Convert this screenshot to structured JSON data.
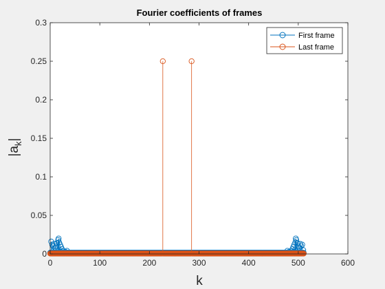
{
  "chart_data": {
    "type": "stem",
    "title": "Fourier coefficients of frames",
    "xlabel": "k",
    "ylabel_base": "|a",
    "ylabel_sub": "k",
    "ylabel_end": "|",
    "xlim": [
      0,
      600
    ],
    "ylim": [
      0,
      0.3
    ],
    "xticks": [
      0,
      100,
      200,
      300,
      400,
      500,
      600
    ],
    "xtick_labels": [
      "0",
      "100",
      "200",
      "300",
      "400",
      "500",
      "600"
    ],
    "yticks": [
      0,
      0.05,
      0.1,
      0.15,
      0.2,
      0.25,
      0.3
    ],
    "ytick_labels": [
      "0",
      "0.05",
      "0.1",
      "0.15",
      "0.2",
      "0.25",
      "0.3"
    ],
    "legend_position": "top-right",
    "grid": false,
    "n_points": 512,
    "series": [
      {
        "name": "First frame",
        "color": "#0072BD",
        "baseline": 0.0015,
        "peaks": [
          {
            "x": 2,
            "y": 0.016
          },
          {
            "x": 4,
            "y": 0.012
          },
          {
            "x": 6,
            "y": 0.01
          },
          {
            "x": 8,
            "y": 0.013
          },
          {
            "x": 10,
            "y": 0.008
          },
          {
            "x": 12,
            "y": 0.01
          },
          {
            "x": 14,
            "y": 0.014
          },
          {
            "x": 16,
            "y": 0.018
          },
          {
            "x": 17,
            "y": 0.02
          },
          {
            "x": 18,
            "y": 0.015
          },
          {
            "x": 20,
            "y": 0.012
          },
          {
            "x": 22,
            "y": 0.009
          },
          {
            "x": 24,
            "y": 0.006
          },
          {
            "x": 26,
            "y": 0.004
          },
          {
            "x": 30,
            "y": 0.003
          },
          {
            "x": 34,
            "y": 0.004
          },
          {
            "x": 478,
            "y": 0.004
          },
          {
            "x": 482,
            "y": 0.003
          },
          {
            "x": 486,
            "y": 0.004
          },
          {
            "x": 488,
            "y": 0.006
          },
          {
            "x": 490,
            "y": 0.009
          },
          {
            "x": 492,
            "y": 0.012
          },
          {
            "x": 494,
            "y": 0.015
          },
          {
            "x": 495,
            "y": 0.02
          },
          {
            "x": 496,
            "y": 0.018
          },
          {
            "x": 498,
            "y": 0.014
          },
          {
            "x": 500,
            "y": 0.01
          },
          {
            "x": 502,
            "y": 0.008
          },
          {
            "x": 504,
            "y": 0.013
          },
          {
            "x": 506,
            "y": 0.01
          },
          {
            "x": 508,
            "y": 0.012
          },
          {
            "x": 510,
            "y": 0.005
          }
        ]
      },
      {
        "name": "Last frame",
        "color": "#D95319",
        "baseline": 0.0005,
        "peaks": [
          {
            "x": 227,
            "y": 0.25
          },
          {
            "x": 285,
            "y": 0.25
          }
        ]
      }
    ]
  }
}
